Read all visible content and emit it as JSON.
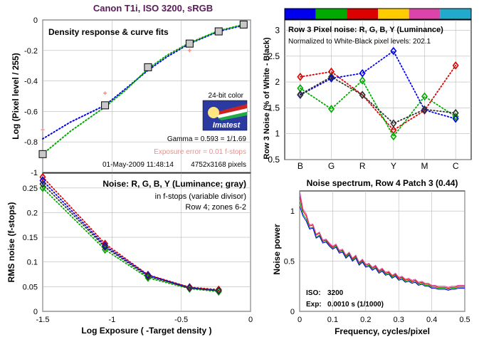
{
  "figure": {
    "title": "Canon T1i, ISO 3200, sRGB",
    "colors": {
      "title": "#5a1a5a",
      "blue": "#0000ee",
      "green": "#00aa00",
      "red": "#dd0000",
      "gray": "#333333",
      "pink": "#e89090",
      "yellow": "#ffcc00",
      "magenta": "#dd44aa",
      "cyan": "#22aacc"
    }
  },
  "chart_data": [
    {
      "id": "density",
      "type": "line",
      "ylabel": "Log (Pixel level / 255)",
      "xlim": [
        -1.5,
        0
      ],
      "ylim": [
        -1,
        0
      ],
      "xticks": [
        -1.5,
        -1,
        -0.5,
        0
      ],
      "yticks": [
        0,
        -0.2,
        -0.4,
        -0.6,
        -0.8,
        -1
      ],
      "ytick_labels": [
        "0",
        "-0.2",
        "-0.4",
        "-0.6",
        "-0.8",
        "-1"
      ],
      "legend_title": "Density response & curve fits",
      "logo": {
        "caption": "24-bit color",
        "brand": "Imatest"
      },
      "annotations": {
        "gamma": "Gamma = 0.593 = 1/1.69",
        "exposure_error": "Exposure error = 0.01 f-stops",
        "date": "01-May-2009 11:48:14",
        "pixels": "4752x3168 pixels"
      },
      "points": {
        "x": [
          -1.5,
          -1.05,
          -0.74,
          -0.44,
          -0.23,
          -0.05
        ],
        "y": [
          -0.88,
          -0.56,
          -0.31,
          -0.155,
          -0.075,
          -0.03
        ]
      },
      "pink_points": {
        "x": [
          -1.5,
          -1.05,
          -0.44
        ],
        "y": [
          -0.72,
          -0.48,
          -0.2
        ]
      },
      "fits": [
        {
          "color": "blue",
          "x": [
            -1.5,
            -1.3,
            -1.05,
            -0.9,
            -0.74,
            -0.6,
            -0.44,
            -0.23,
            -0.05
          ],
          "y": [
            -0.78,
            -0.67,
            -0.56,
            -0.45,
            -0.33,
            -0.24,
            -0.155,
            -0.075,
            -0.035
          ]
        },
        {
          "color": "green",
          "x": [
            -1.5,
            -1.3,
            -1.05,
            -0.9,
            -0.74,
            -0.6,
            -0.44,
            -0.23,
            -0.05
          ],
          "y": [
            -0.88,
            -0.73,
            -0.57,
            -0.46,
            -0.32,
            -0.23,
            -0.15,
            -0.07,
            -0.03
          ]
        }
      ]
    },
    {
      "id": "noise-fstops",
      "type": "line",
      "xlabel": "Log Exposure ( -Target density )",
      "ylabel": "RMS noise (f-stops)",
      "xlim": [
        -1.5,
        0
      ],
      "ylim": [
        0,
        0.28
      ],
      "xticks": [
        -1.5,
        -1,
        -0.5,
        0
      ],
      "xtick_labels": [
        "-1.5",
        "-1",
        "-0.5",
        "0"
      ],
      "yticks": [
        0,
        0.05,
        0.1,
        0.15,
        0.2,
        0.25
      ],
      "ytick_labels": [
        "0",
        "0.05",
        "0.1",
        "0.15",
        "0.2",
        "0.25"
      ],
      "legend_title": "Noise: R, G, B, Y (Luminance; gray)",
      "notes": [
        "in f-stops (variable divisor)",
        "Row 4; zones 6-2"
      ],
      "x": [
        -1.5,
        -1.05,
        -0.74,
        -0.44,
        -0.23
      ],
      "series": [
        {
          "color": "red",
          "values": [
            0.272,
            0.137,
            0.074,
            0.049,
            0.044
          ]
        },
        {
          "color": "green",
          "values": [
            0.25,
            0.125,
            0.068,
            0.046,
            0.04
          ]
        },
        {
          "color": "blue",
          "values": [
            0.265,
            0.133,
            0.073,
            0.048,
            0.042
          ]
        },
        {
          "color": "gray",
          "values": [
            0.258,
            0.13,
            0.071,
            0.047,
            0.042
          ]
        }
      ]
    },
    {
      "id": "row3-noise",
      "type": "line",
      "ylabel": "Row 3 Noise (% of White - Black)",
      "legend_title": "Row 3 Pixel noise: R, G, B, Y (Luminance)",
      "note": "Normalized to White-Black pixel levels: 202.1",
      "categories": [
        "B",
        "G",
        "R",
        "Y",
        "M",
        "C"
      ],
      "ylim": [
        0.5,
        3.2
      ],
      "yticks": [
        0.5,
        1,
        1.5,
        2,
        2.5,
        3
      ],
      "ytick_labels": [
        "0.5",
        "1",
        "1.5",
        "2",
        "2.5",
        "3"
      ],
      "patch_colors": [
        "blue",
        "green",
        "red",
        "yellow",
        "magenta",
        "cyan"
      ],
      "series": [
        {
          "color": "red",
          "values": [
            2.1,
            2.2,
            1.75,
            1.07,
            1.45,
            2.32
          ]
        },
        {
          "color": "green",
          "values": [
            1.88,
            1.48,
            2.03,
            0.95,
            1.72,
            1.33
          ]
        },
        {
          "color": "blue",
          "values": [
            1.75,
            2.07,
            2.17,
            2.6,
            1.46,
            1.29
          ]
        },
        {
          "color": "gray",
          "values": [
            1.76,
            2.1,
            1.75,
            1.2,
            1.47,
            1.4
          ]
        }
      ]
    },
    {
      "id": "spectrum",
      "type": "line",
      "title": "Noise spectrum, Row 4 Patch 3 (0.44)",
      "xlabel": "Frequency, cycles/pixel",
      "ylabel": "Noise power",
      "xlim": [
        0,
        0.5
      ],
      "ylim": [
        0,
        1.2
      ],
      "xticks": [
        0,
        0.1,
        0.2,
        0.3,
        0.4,
        0.5
      ],
      "xtick_labels": [
        "0",
        "0.1",
        "0.2",
        "0.3",
        "0.4",
        "0.5"
      ],
      "yticks": [
        0,
        0.5,
        1
      ],
      "ytick_labels": [
        "0",
        "0.5",
        "1"
      ],
      "info": {
        "iso_label": "ISO:",
        "iso_value": "3200",
        "exp_label": "Exp:",
        "exp_value": "0.0010 s  (1/1000)"
      },
      "x": [
        0,
        0.01,
        0.02,
        0.03,
        0.04,
        0.05,
        0.06,
        0.07,
        0.08,
        0.09,
        0.1,
        0.11,
        0.12,
        0.13,
        0.14,
        0.15,
        0.16,
        0.17,
        0.18,
        0.19,
        0.2,
        0.21,
        0.22,
        0.23,
        0.24,
        0.25,
        0.26,
        0.27,
        0.28,
        0.29,
        0.3,
        0.31,
        0.32,
        0.33,
        0.34,
        0.35,
        0.36,
        0.37,
        0.38,
        0.39,
        0.4,
        0.41,
        0.42,
        0.43,
        0.44,
        0.45,
        0.46,
        0.47,
        0.48,
        0.49,
        0.5
      ],
      "series": [
        {
          "color": "red",
          "values": [
            1.15,
            1.0,
            0.95,
            0.85,
            0.86,
            0.76,
            0.78,
            0.7,
            0.71,
            0.67,
            0.64,
            0.66,
            0.6,
            0.61,
            0.55,
            0.58,
            0.52,
            0.55,
            0.48,
            0.51,
            0.46,
            0.47,
            0.43,
            0.45,
            0.4,
            0.42,
            0.38,
            0.39,
            0.35,
            0.37,
            0.33,
            0.34,
            0.31,
            0.32,
            0.3,
            0.31,
            0.28,
            0.29,
            0.27,
            0.27,
            0.25,
            0.25,
            0.24,
            0.24,
            0.24,
            0.23,
            0.24,
            0.24,
            0.25,
            0.25,
            0.25
          ]
        },
        {
          "color": "green",
          "values": [
            1.1,
            0.97,
            0.92,
            0.83,
            0.84,
            0.74,
            0.76,
            0.69,
            0.7,
            0.66,
            0.63,
            0.65,
            0.59,
            0.6,
            0.54,
            0.57,
            0.51,
            0.54,
            0.47,
            0.5,
            0.45,
            0.46,
            0.42,
            0.44,
            0.39,
            0.41,
            0.37,
            0.38,
            0.34,
            0.36,
            0.32,
            0.33,
            0.3,
            0.31,
            0.29,
            0.3,
            0.27,
            0.28,
            0.26,
            0.26,
            0.24,
            0.24,
            0.23,
            0.23,
            0.23,
            0.22,
            0.23,
            0.23,
            0.24,
            0.24,
            0.24
          ]
        },
        {
          "color": "blue",
          "values": [
            1.05,
            0.95,
            0.9,
            0.82,
            0.83,
            0.73,
            0.75,
            0.68,
            0.69,
            0.65,
            0.62,
            0.64,
            0.58,
            0.59,
            0.53,
            0.56,
            0.5,
            0.53,
            0.46,
            0.49,
            0.44,
            0.45,
            0.41,
            0.43,
            0.38,
            0.4,
            0.36,
            0.37,
            0.33,
            0.35,
            0.31,
            0.32,
            0.29,
            0.3,
            0.28,
            0.29,
            0.26,
            0.27,
            0.25,
            0.25,
            0.23,
            0.23,
            0.22,
            0.22,
            0.22,
            0.21,
            0.22,
            0.22,
            0.23,
            0.23,
            0.23
          ]
        },
        {
          "color": "magenta",
          "values": [
            1.2,
            1.02,
            0.97,
            0.86,
            0.87,
            0.77,
            0.79,
            0.71,
            0.72,
            0.68,
            0.65,
            0.67,
            0.61,
            0.62,
            0.56,
            0.59,
            0.53,
            0.56,
            0.49,
            0.52,
            0.47,
            0.48,
            0.44,
            0.46,
            0.41,
            0.43,
            0.39,
            0.4,
            0.36,
            0.38,
            0.34,
            0.35,
            0.32,
            0.33,
            0.31,
            0.32,
            0.29,
            0.3,
            0.28,
            0.28,
            0.26,
            0.26,
            0.25,
            0.25,
            0.25,
            0.24,
            0.25,
            0.25,
            0.26,
            0.26,
            0.26
          ]
        }
      ]
    }
  ]
}
